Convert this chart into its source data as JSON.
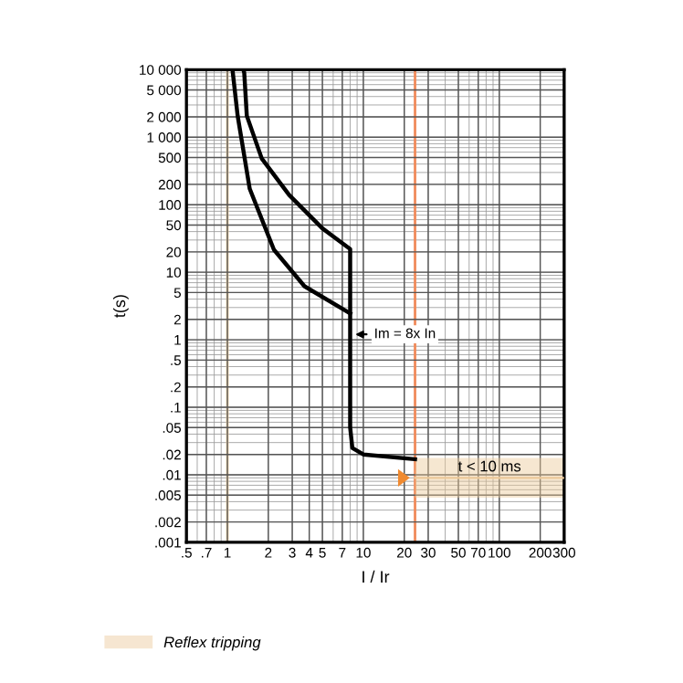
{
  "chart_data": {
    "type": "line",
    "xlabel": "I / Ir",
    "ylabel": "t(s)",
    "log": "xy",
    "grid": true,
    "legend": "bottom left",
    "xlim": [
      0.5,
      300
    ],
    "ylim": [
      0.001,
      10000
    ],
    "xticks": [
      {
        "value": 0.5,
        "label": ".5"
      },
      {
        "value": 0.7,
        "label": ".7"
      },
      1,
      2,
      3,
      4,
      5,
      7,
      10,
      20,
      30,
      50,
      70,
      100,
      200,
      300
    ],
    "yticks": [
      {
        "value": 10000,
        "label": "10 000"
      },
      {
        "value": 5000,
        "label": "5 000"
      },
      {
        "value": 2000,
        "label": "2 000"
      },
      {
        "value": 1000,
        "label": "1 000"
      },
      500,
      200,
      100,
      50,
      20,
      10,
      5,
      2,
      1,
      {
        "value": 0.5,
        "label": ".5"
      },
      {
        "value": 0.2,
        "label": ".2"
      },
      {
        "value": 0.1,
        "label": ".1"
      },
      {
        "value": 0.05,
        "label": ".05"
      },
      {
        "value": 0.02,
        "label": ".02"
      },
      {
        "value": 0.01,
        "label": ".01"
      },
      {
        "value": 0.005,
        "label": ".005"
      },
      {
        "value": 0.002,
        "label": ".002"
      },
      {
        "value": 0.001,
        "label": ".001"
      }
    ],
    "series": [
      {
        "color": "#000000",
        "x": [
          1.31,
          1.33,
          1.39,
          1.79,
          2.85,
          5.0,
          8,
          8,
          8,
          8.3,
          10,
          24
        ],
        "values": [
          10000,
          9000,
          2070,
          483,
          139,
          44.6,
          22,
          2.45,
          0.05,
          0.025,
          0.02,
          0.017
        ]
      },
      {
        "color": "#000000",
        "x": [
          1.09,
          1.19,
          1.46,
          2.2,
          3.69,
          8
        ],
        "values": [
          10000,
          2070,
          172,
          21.5,
          6.2,
          2.45
        ]
      },
      {
        "type": "line",
        "name": "Reflex tripping",
        "color": "#ecc99a",
        "x": [
          24,
          300
        ],
        "lower": [
          0.0046,
          0.0046
        ],
        "upper": [
          0.0178,
          0.0178
        ],
        "values": [
          0.009,
          0.009
        ]
      }
    ],
    "ref_lines": [
      {
        "axis": "x",
        "value": 1,
        "color": "#f3d3a3"
      },
      {
        "axis": "x",
        "value": 24,
        "color": "#f08a5a"
      }
    ],
    "annotations": [
      {
        "text": "Im = 8x In",
        "x": 8,
        "y": 1.2
      },
      "t < 10 ms"
    ]
  }
}
